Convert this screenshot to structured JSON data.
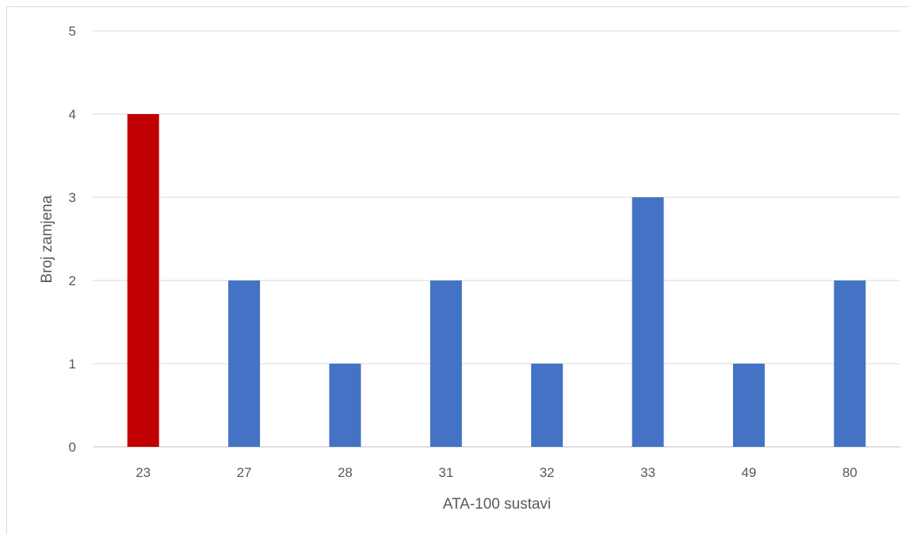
{
  "chart_data": {
    "type": "bar",
    "title": "",
    "xlabel": "ATA-100 sustavi",
    "ylabel": "Broj zamjena",
    "categories": [
      "23",
      "27",
      "28",
      "31",
      "32",
      "33",
      "49",
      "80"
    ],
    "values": [
      4,
      2,
      1,
      2,
      1,
      3,
      1,
      2
    ],
    "ylim": [
      0,
      5
    ],
    "yticks": [
      "0",
      "1",
      "2",
      "3",
      "4",
      "5"
    ],
    "grid": true,
    "legend": "none",
    "colors": {
      "highlight": "#c00000",
      "default": "#4472c4",
      "highlight_category": "23"
    }
  }
}
